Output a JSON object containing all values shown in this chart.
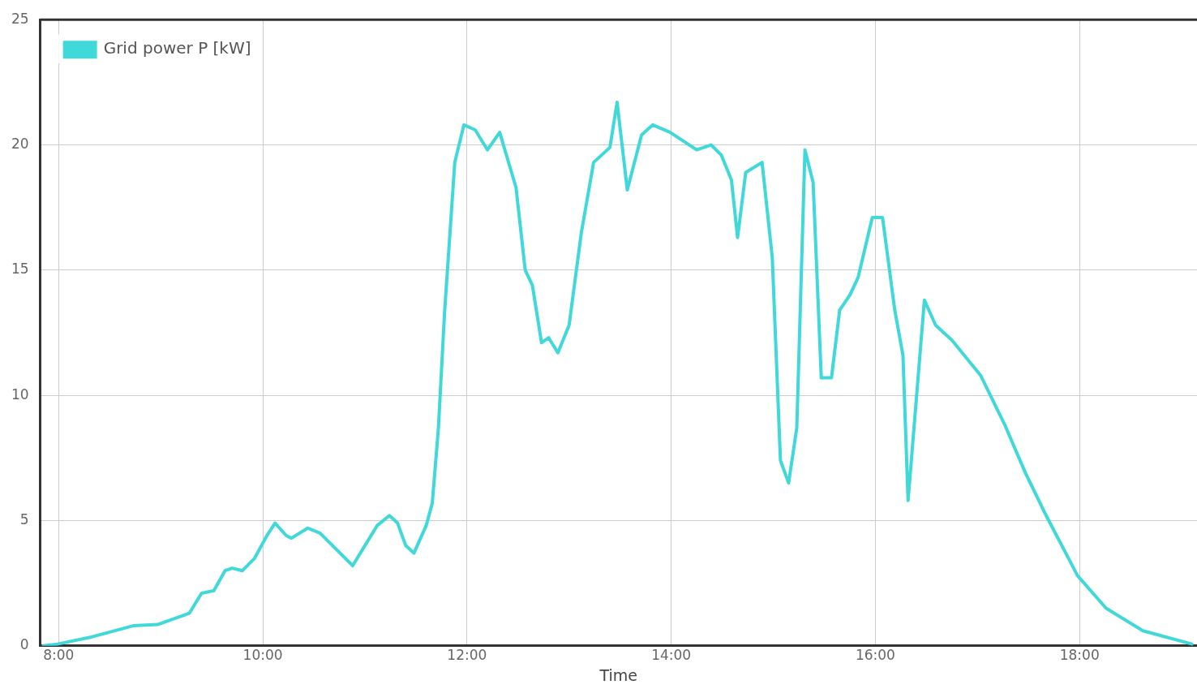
{
  "chart_data": {
    "type": "line",
    "xlabel": "Time",
    "legend": "top left",
    "grid": true,
    "marker": "none",
    "line_style": "solid",
    "xlim": [
      7.82,
      19.15
    ],
    "ylim": [
      0,
      25
    ],
    "xticks": [
      {
        "value": 8,
        "label": "8:00"
      },
      {
        "value": 10,
        "label": "10:00"
      },
      {
        "value": 12,
        "label": "12:00"
      },
      {
        "value": 14,
        "label": "14:00"
      },
      {
        "value": 16,
        "label": "16:00"
      },
      {
        "value": 18,
        "label": "18:00"
      }
    ],
    "yticks": [
      0,
      5,
      10,
      15,
      20,
      25
    ],
    "series": [
      {
        "name": "Grid power P [kW]",
        "color": "#40d8d8",
        "x": [
          7.85,
          7.99,
          8.33,
          8.73,
          8.97,
          9.21,
          9.28,
          9.4,
          9.52,
          9.63,
          9.7,
          9.8,
          9.92,
          10.04,
          10.12,
          10.23,
          10.28,
          10.44,
          10.56,
          10.88,
          11.12,
          11.24,
          11.32,
          11.4,
          11.48,
          11.6,
          11.66,
          11.72,
          11.78,
          11.88,
          11.97,
          12.08,
          12.2,
          12.32,
          12.48,
          12.57,
          12.64,
          12.73,
          12.8,
          12.89,
          13,
          13.12,
          13.24,
          13.4,
          13.47,
          13.57,
          13.71,
          13.82,
          13.99,
          14.25,
          14.39,
          14.49,
          14.59,
          14.65,
          14.73,
          14.89,
          14.99,
          15.07,
          15.15,
          15.23,
          15.31,
          15.39,
          15.47,
          15.57,
          15.65,
          15.75,
          15.83,
          15.97,
          16.07,
          16.19,
          16.27,
          16.32,
          16.48,
          16.59,
          16.75,
          17.03,
          17.27,
          17.47,
          17.66,
          17.98,
          18.26,
          18.62,
          19.1
        ],
        "values": [
          0,
          0.07,
          0.36,
          0.8,
          0.85,
          1.2,
          1.3,
          2.1,
          2.2,
          3,
          3.1,
          3,
          3.5,
          4.4,
          4.9,
          4.4,
          4.3,
          4.7,
          4.5,
          3.2,
          4.8,
          5.2,
          4.9,
          4,
          3.7,
          4.8,
          5.7,
          8.7,
          13.3,
          19.3,
          20.8,
          20.6,
          19.8,
          20.5,
          18.3,
          15,
          14.4,
          12.1,
          12.3,
          11.7,
          12.8,
          16.5,
          19.3,
          19.9,
          21.7,
          18.2,
          20.4,
          20.8,
          20.5,
          19.8,
          20,
          19.6,
          18.6,
          16.3,
          18.9,
          19.3,
          15.5,
          7.4,
          6.5,
          8.7,
          19.8,
          18.5,
          10.7,
          10.7,
          13.4,
          14,
          14.7,
          17.1,
          17.1,
          13.4,
          11.6,
          5.8,
          13.8,
          12.8,
          12.2,
          10.8,
          8.8,
          6.9,
          5.3,
          2.8,
          1.5,
          0.6,
          0.07
        ]
      }
    ]
  }
}
